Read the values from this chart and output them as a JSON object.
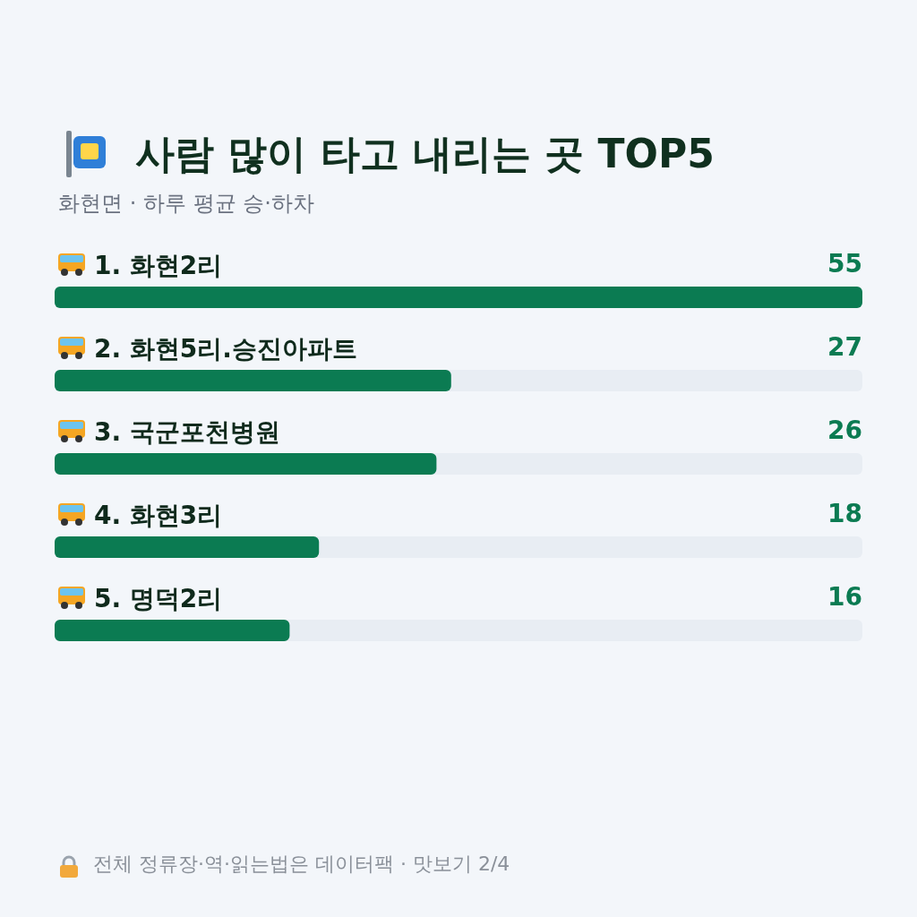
{
  "chart_data": {
    "type": "bar",
    "orientation": "horizontal",
    "title": "사람 많이 타고 내리는 곳 TOP5",
    "subtitle": "화현면 · 하루 평균 승·하차",
    "categories": [
      "1. 화현2리",
      "2. 화현5리.승진아파트",
      "3. 국군포천병원",
      "4. 화현3리",
      "5. 명덕2리"
    ],
    "values": [
      55,
      27,
      26,
      18,
      16
    ],
    "color": "#0b7b52",
    "data_labels": true,
    "tick_labels": "y",
    "annotations": [
      "전체 정류장·역·읽는법은 데이터팩 · 맛보기 2/4"
    ]
  }
}
